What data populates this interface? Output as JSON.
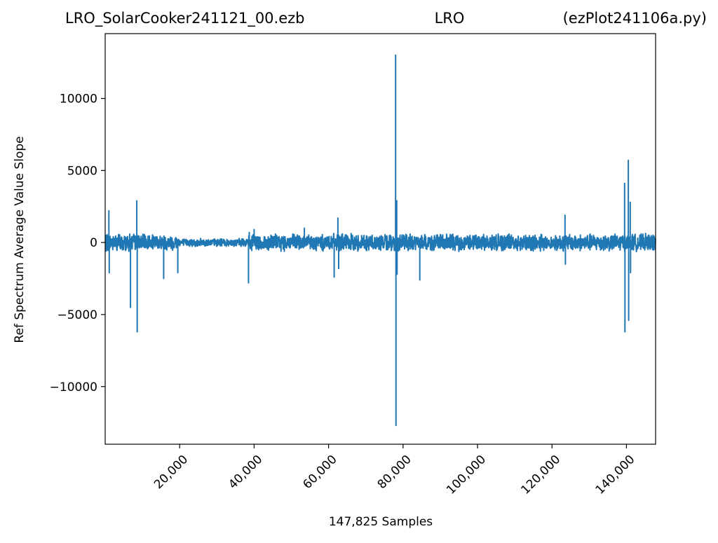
{
  "chart_data": {
    "type": "line",
    "title": {
      "left": "LRO_SolarCooker241121_00.ezb",
      "center": "LRO",
      "right": "(ezPlot241106a.py)"
    },
    "xlabel": "147,825 Samples",
    "ylabel": "Ref Spectrum Average Value Slope",
    "xlim": [
      0,
      147825
    ],
    "ylim": [
      -14000,
      14500
    ],
    "x_ticks": [
      {
        "value": 20000,
        "label": "20,000"
      },
      {
        "value": 40000,
        "label": "40,000"
      },
      {
        "value": 60000,
        "label": "60,000"
      },
      {
        "value": 80000,
        "label": "80,000"
      },
      {
        "value": 100000,
        "label": "100,000"
      },
      {
        "value": 120000,
        "label": "120,000"
      },
      {
        "value": 140000,
        "label": "140,000"
      }
    ],
    "y_ticks": [
      {
        "value": 10000,
        "label": "10000"
      },
      {
        "value": 5000,
        "label": "5000"
      },
      {
        "value": 0,
        "label": "0"
      },
      {
        "value": -5000,
        "label": "−5000"
      },
      {
        "value": -10000,
        "label": "−10000"
      }
    ],
    "grid": false,
    "line_color": "#1f77b4",
    "noise_bands": [
      {
        "x": [
          0,
          8800
        ],
        "amplitude": 700
      },
      {
        "x": [
          8800,
          20000
        ],
        "amplitude": 600
      },
      {
        "x": [
          20000,
          38500
        ],
        "amplitude": 300
      },
      {
        "x": [
          38500,
          147825
        ],
        "amplitude": 650
      }
    ],
    "spikes": [
      {
        "x": 1000,
        "y": 2200
      },
      {
        "x": 1100,
        "y": -2100
      },
      {
        "x": 6800,
        "y": -4500
      },
      {
        "x": 8500,
        "y": 2900
      },
      {
        "x": 8600,
        "y": -6200
      },
      {
        "x": 15700,
        "y": -2500
      },
      {
        "x": 19500,
        "y": -2100
      },
      {
        "x": 38500,
        "y": -2800
      },
      {
        "x": 38700,
        "y": 700
      },
      {
        "x": 40000,
        "y": 900
      },
      {
        "x": 53500,
        "y": 1000
      },
      {
        "x": 61500,
        "y": -2400
      },
      {
        "x": 62500,
        "y": 1700
      },
      {
        "x": 62700,
        "y": -1800
      },
      {
        "x": 78000,
        "y": 13000
      },
      {
        "x": 78100,
        "y": -12700
      },
      {
        "x": 78300,
        "y": 2900
      },
      {
        "x": 78400,
        "y": -2200
      },
      {
        "x": 84500,
        "y": -2600
      },
      {
        "x": 123500,
        "y": 1900
      },
      {
        "x": 123600,
        "y": -1500
      },
      {
        "x": 139500,
        "y": 4100
      },
      {
        "x": 139600,
        "y": -6200
      },
      {
        "x": 140500,
        "y": 5700
      },
      {
        "x": 140600,
        "y": -5400
      },
      {
        "x": 141000,
        "y": 2800
      },
      {
        "x": 141100,
        "y": -2100
      }
    ]
  }
}
